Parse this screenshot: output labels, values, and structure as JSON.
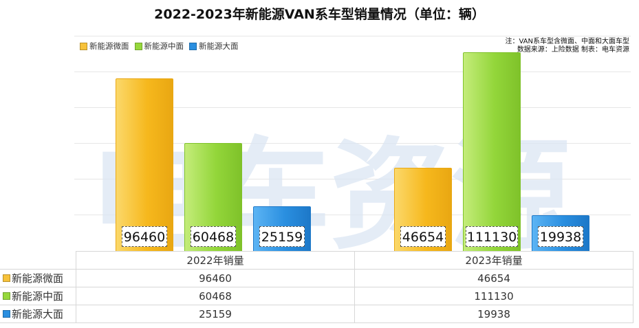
{
  "title": "2022-2023年新能源VAN系车型销量情况（单位：辆）",
  "note": {
    "line1": "注：VAN系车型含微面、中面和大面车型",
    "line2": "数据来源：上险数据 制表：电车资源"
  },
  "watermark": "电车资源",
  "colors": {
    "微面": "#f7c23a",
    "中面": "#96d83c",
    "大面": "#2a8fe0"
  },
  "chart_data": {
    "type": "bar",
    "title": "2022-2023年新能源VAN系车型销量情况（单位：辆）",
    "categories": [
      "2022年销量",
      "2023年销量"
    ],
    "series": [
      {
        "name": "新能源微面",
        "values": [
          96460,
          46654
        ]
      },
      {
        "name": "新能源中面",
        "values": [
          60468,
          111130
        ]
      },
      {
        "name": "新能源大面",
        "values": [
          25159,
          19938
        ]
      }
    ],
    "ylim": [
      0,
      120000
    ],
    "grid": true,
    "legend": "top-left",
    "data_labels": true
  }
}
